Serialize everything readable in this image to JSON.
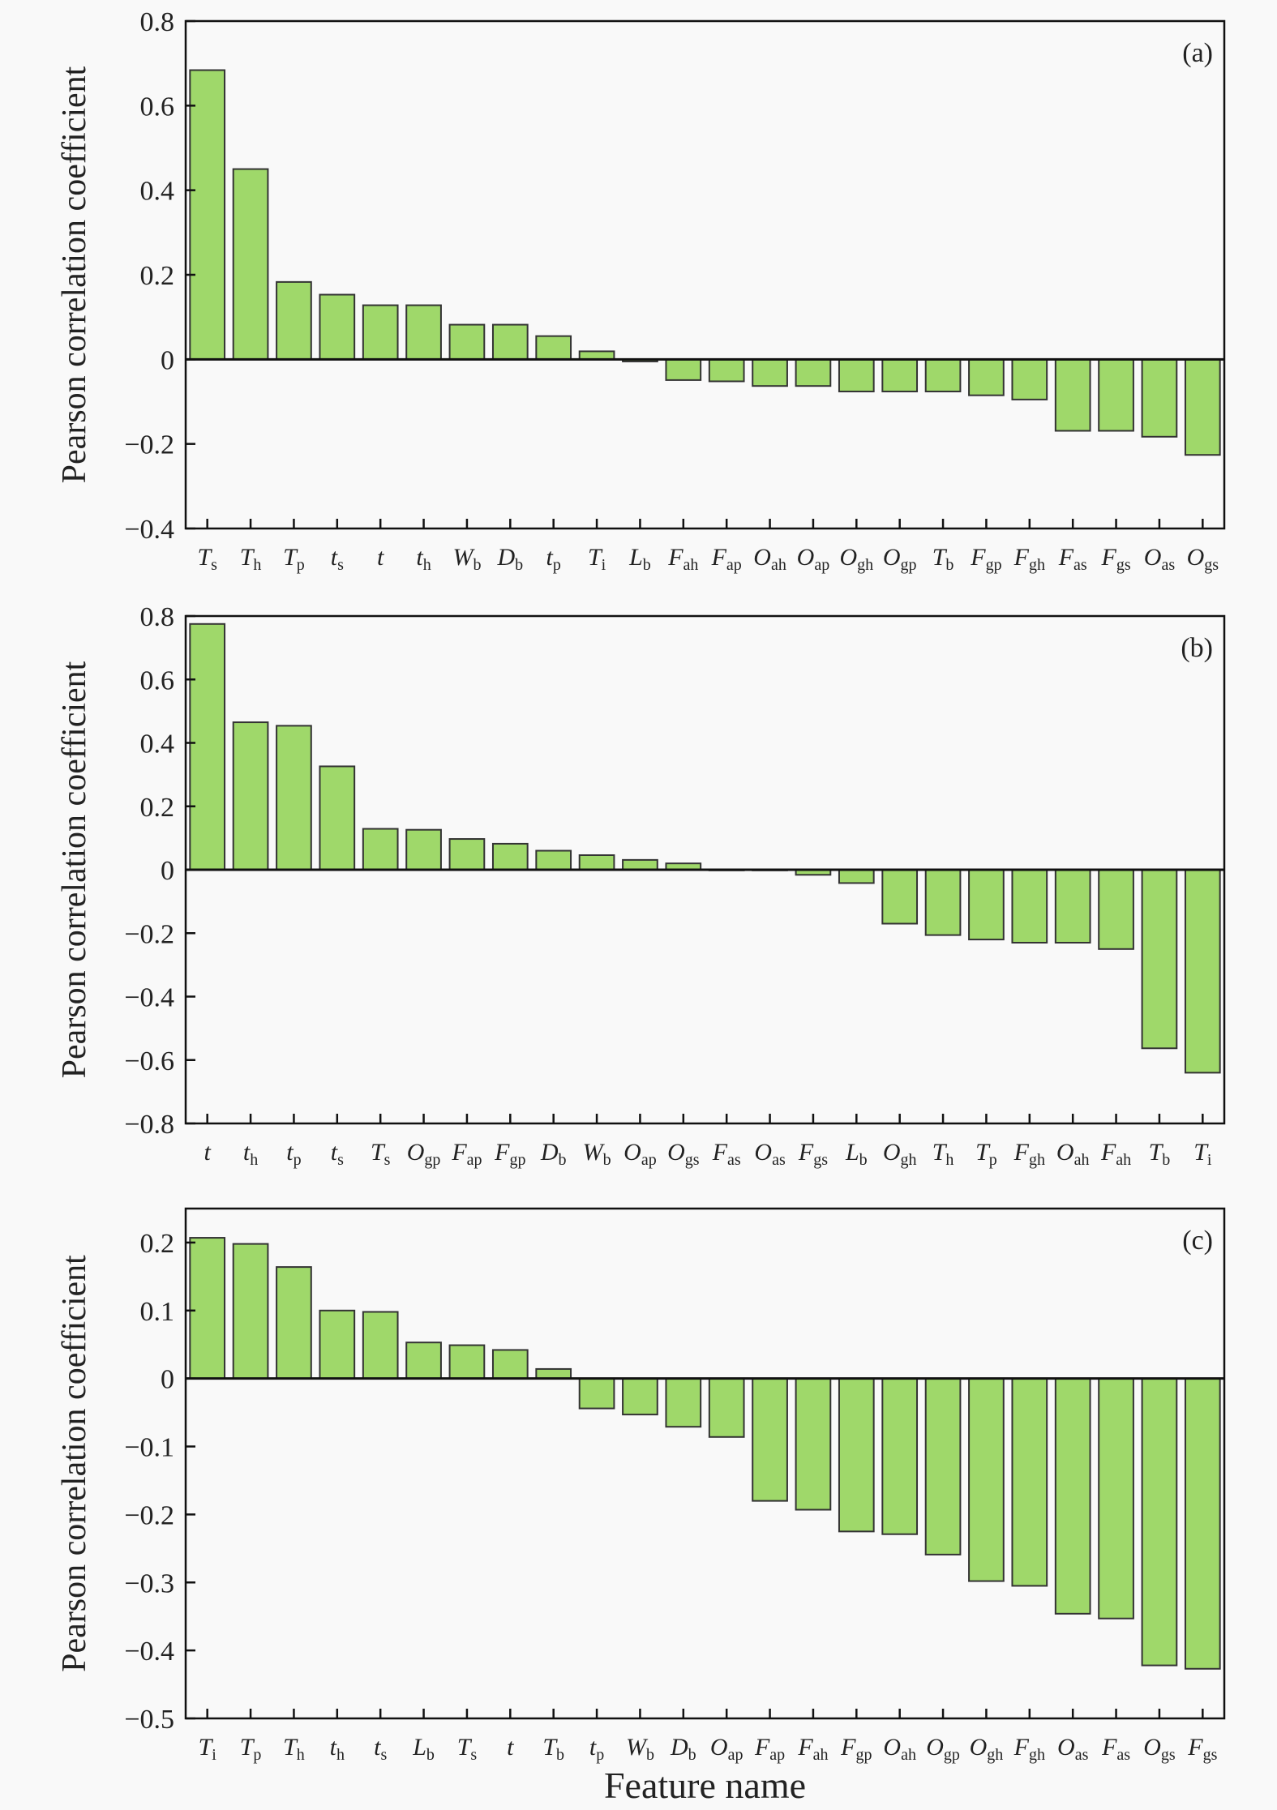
{
  "colors": {
    "bar_fill": "#9fd86a",
    "bar_edge": "#333333",
    "axis": "#111111"
  },
  "chart_data": [
    {
      "type": "bar",
      "panel_label": "(a)",
      "ylabel": "Pearson correlation coefficient",
      "xlabel": "",
      "ylim": [
        -0.4,
        0.8
      ],
      "yticks": [
        -0.4,
        -0.2,
        0,
        0.2,
        0.4,
        0.6,
        0.8
      ],
      "ytick_labels": [
        "−0.4",
        "−0.2",
        "0",
        "0.2",
        "0.4",
        "0.6",
        "0.8"
      ],
      "grid": false,
      "categories": [
        {
          "main": "T",
          "sub": "s"
        },
        {
          "main": "T",
          "sub": "h"
        },
        {
          "main": "T",
          "sub": "p"
        },
        {
          "main": "t",
          "sub": "s"
        },
        {
          "main": "t",
          "sub": ""
        },
        {
          "main": "t",
          "sub": "h"
        },
        {
          "main": "W",
          "sub": "b"
        },
        {
          "main": "D",
          "sub": "b"
        },
        {
          "main": "t",
          "sub": "p"
        },
        {
          "main": "T",
          "sub": "i"
        },
        {
          "main": "L",
          "sub": "b"
        },
        {
          "main": "F",
          "sub": "ah"
        },
        {
          "main": "F",
          "sub": "ap"
        },
        {
          "main": "O",
          "sub": "ah"
        },
        {
          "main": "O",
          "sub": "ap"
        },
        {
          "main": "O",
          "sub": "gh"
        },
        {
          "main": "O",
          "sub": "gp"
        },
        {
          "main": "T",
          "sub": "b"
        },
        {
          "main": "F",
          "sub": "gp"
        },
        {
          "main": "F",
          "sub": "gh"
        },
        {
          "main": "F",
          "sub": "as"
        },
        {
          "main": "F",
          "sub": "gs"
        },
        {
          "main": "O",
          "sub": "as"
        },
        {
          "main": "O",
          "sub": "gs"
        }
      ],
      "values": [
        0.684,
        0.45,
        0.183,
        0.153,
        0.128,
        0.128,
        0.082,
        0.082,
        0.055,
        0.019,
        -0.005,
        -0.049,
        -0.052,
        -0.063,
        -0.063,
        -0.076,
        -0.076,
        -0.076,
        -0.085,
        -0.095,
        -0.169,
        -0.169,
        -0.183,
        -0.226
      ]
    },
    {
      "type": "bar",
      "panel_label": "(b)",
      "ylabel": "Pearson correlation coefficient",
      "xlabel": "",
      "ylim": [
        -0.8,
        0.8
      ],
      "yticks": [
        -0.8,
        -0.6,
        -0.4,
        -0.2,
        0,
        0.2,
        0.4,
        0.6,
        0.8
      ],
      "ytick_labels": [
        "−0.8",
        "−0.6",
        "−0.4",
        "−0.2",
        "0",
        "0.2",
        "0.4",
        "0.6",
        "0.8"
      ],
      "grid": false,
      "categories": [
        {
          "main": "t",
          "sub": ""
        },
        {
          "main": "t",
          "sub": "h"
        },
        {
          "main": "t",
          "sub": "p"
        },
        {
          "main": "t",
          "sub": "s"
        },
        {
          "main": "T",
          "sub": "s"
        },
        {
          "main": "O",
          "sub": "gp"
        },
        {
          "main": "F",
          "sub": "ap"
        },
        {
          "main": "F",
          "sub": "gp"
        },
        {
          "main": "D",
          "sub": "b"
        },
        {
          "main": "W",
          "sub": "b"
        },
        {
          "main": "O",
          "sub": "ap"
        },
        {
          "main": "O",
          "sub": "gs"
        },
        {
          "main": "F",
          "sub": "as"
        },
        {
          "main": "O",
          "sub": "as"
        },
        {
          "main": "F",
          "sub": "gs"
        },
        {
          "main": "L",
          "sub": "b"
        },
        {
          "main": "O",
          "sub": "gh"
        },
        {
          "main": "T",
          "sub": "h"
        },
        {
          "main": "T",
          "sub": "p"
        },
        {
          "main": "F",
          "sub": "gh"
        },
        {
          "main": "O",
          "sub": "ah"
        },
        {
          "main": "F",
          "sub": "ah"
        },
        {
          "main": "T",
          "sub": "b"
        },
        {
          "main": "T",
          "sub": "i"
        }
      ],
      "values": [
        0.775,
        0.465,
        0.454,
        0.326,
        0.129,
        0.126,
        0.097,
        0.082,
        0.06,
        0.046,
        0.031,
        0.02,
        0.0,
        0.0,
        -0.016,
        -0.042,
        -0.17,
        -0.206,
        -0.22,
        -0.23,
        -0.23,
        -0.25,
        -0.563,
        -0.64
      ]
    },
    {
      "type": "bar",
      "panel_label": "(c)",
      "ylabel": "Pearson correlation coefficient",
      "xlabel": "Feature name",
      "ylim": [
        -0.5,
        0.25
      ],
      "yticks": [
        -0.5,
        -0.4,
        -0.3,
        -0.2,
        -0.1,
        0,
        0.1,
        0.2
      ],
      "ytick_labels": [
        "−0.5",
        "−0.4",
        "−0.3",
        "−0.2",
        "−0.1",
        "0",
        "0.1",
        "0.2"
      ],
      "grid": false,
      "categories": [
        {
          "main": "T",
          "sub": "i"
        },
        {
          "main": "T",
          "sub": "p"
        },
        {
          "main": "T",
          "sub": "h"
        },
        {
          "main": "t",
          "sub": "h"
        },
        {
          "main": "t",
          "sub": "s"
        },
        {
          "main": "L",
          "sub": "b"
        },
        {
          "main": "T",
          "sub": "s"
        },
        {
          "main": "t",
          "sub": ""
        },
        {
          "main": "T",
          "sub": "b"
        },
        {
          "main": "t",
          "sub": "p"
        },
        {
          "main": "W",
          "sub": "b"
        },
        {
          "main": "D",
          "sub": "b"
        },
        {
          "main": "O",
          "sub": "ap"
        },
        {
          "main": "F",
          "sub": "ap"
        },
        {
          "main": "F",
          "sub": "ah"
        },
        {
          "main": "F",
          "sub": "gp"
        },
        {
          "main": "O",
          "sub": "ah"
        },
        {
          "main": "O",
          "sub": "gp"
        },
        {
          "main": "O",
          "sub": "gh"
        },
        {
          "main": "F",
          "sub": "gh"
        },
        {
          "main": "O",
          "sub": "as"
        },
        {
          "main": "F",
          "sub": "as"
        },
        {
          "main": "O",
          "sub": "gs"
        },
        {
          "main": "F",
          "sub": "gs"
        }
      ],
      "values": [
        0.207,
        0.198,
        0.164,
        0.1,
        0.098,
        0.053,
        0.049,
        0.042,
        0.014,
        -0.044,
        -0.053,
        -0.071,
        -0.086,
        -0.18,
        -0.193,
        -0.225,
        -0.229,
        -0.259,
        -0.298,
        -0.305,
        -0.346,
        -0.353,
        -0.422,
        -0.427
      ]
    }
  ]
}
